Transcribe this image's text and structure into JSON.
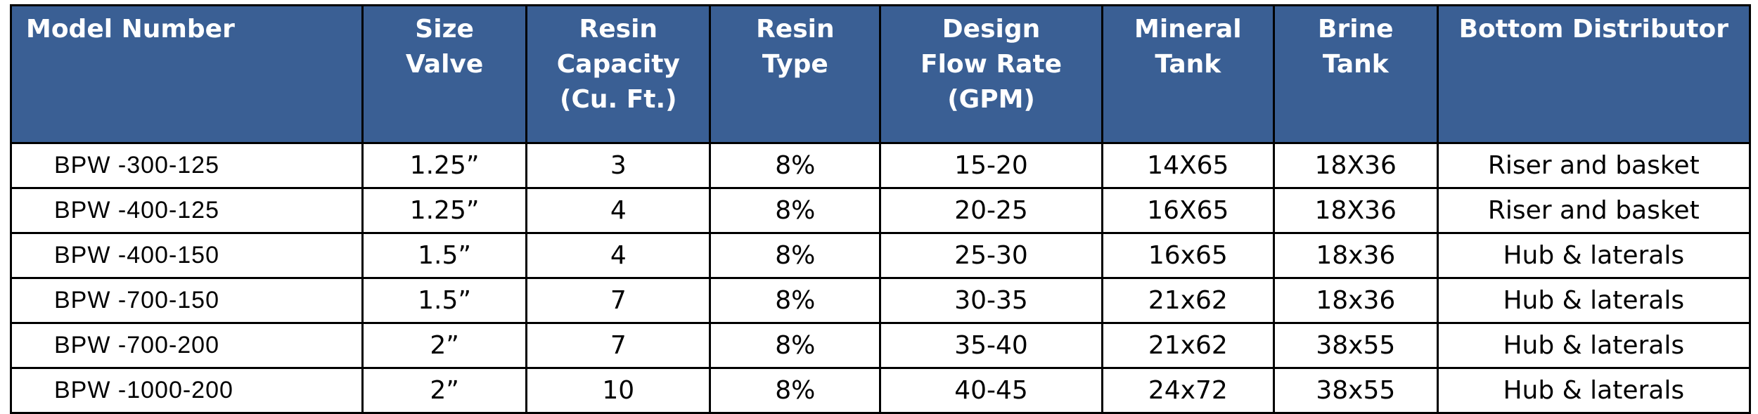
{
  "table": {
    "headers": [
      {
        "lines": [
          "Model Number"
        ]
      },
      {
        "lines": [
          "Size",
          "Valve"
        ]
      },
      {
        "lines": [
          "Resin",
          "Capacity",
          "(Cu. Ft.)"
        ]
      },
      {
        "lines": [
          "Resin",
          "Type"
        ]
      },
      {
        "lines": [
          "Design",
          "Flow Rate",
          "(GPM)"
        ]
      },
      {
        "lines": [
          "Mineral",
          "Tank"
        ]
      },
      {
        "lines": [
          "Brine",
          "Tank"
        ]
      },
      {
        "lines": [
          "Bottom Distributor"
        ]
      }
    ],
    "rows": [
      [
        "BPW -300-125",
        "1.25”",
        "3",
        "8%",
        "15-20",
        "14X65",
        "18X36",
        "Riser and basket"
      ],
      [
        "BPW -400-125",
        "1.25”",
        "4",
        "8%",
        "20-25",
        "16X65",
        "18X36",
        "Riser and basket"
      ],
      [
        "BPW -400-150",
        "1.5”",
        "4",
        "8%",
        "25-30",
        "16x65",
        "18x36",
        "Hub & laterals"
      ],
      [
        "BPW -700-150",
        "1.5”",
        "7",
        "8%",
        "30-35",
        "21x62",
        "18x36",
        "Hub & laterals"
      ],
      [
        "BPW -700-200",
        "2”",
        "7",
        "8%",
        "35-40",
        "21x62",
        "38x55",
        "Hub & laterals"
      ],
      [
        "BPW -1000-200",
        "2”",
        "10",
        "8%",
        "40-45",
        "24x72",
        "38x55",
        "Hub & laterals"
      ]
    ]
  },
  "colors": {
    "header_bg": "#3a5f94",
    "header_text": "#ffffff",
    "border": "#000000"
  }
}
